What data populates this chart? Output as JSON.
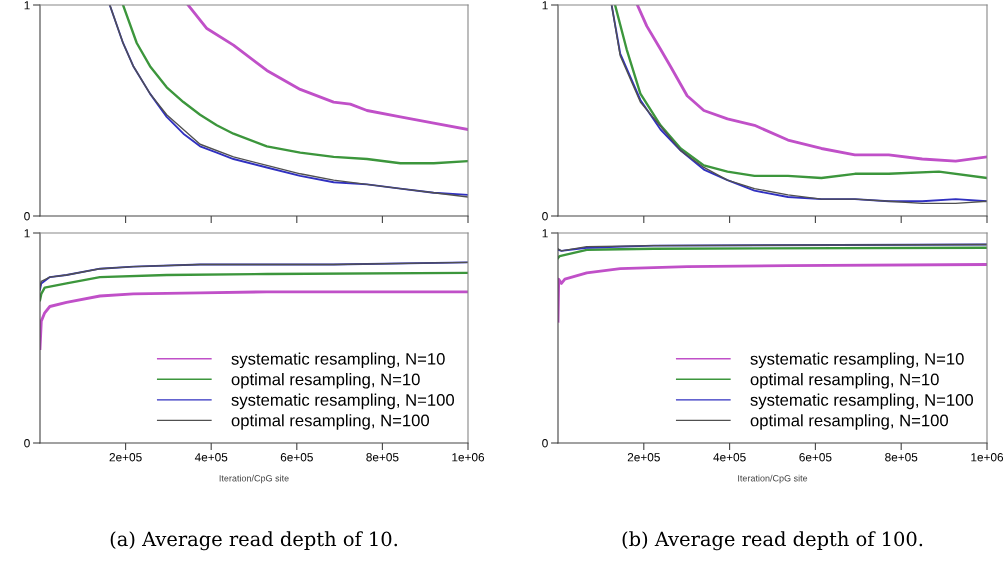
{
  "chart_data": [
    {
      "type": "line",
      "xlim": [
        0,
        1000000
      ],
      "ylim": [
        0,
        1
      ],
      "yticks": [
        0,
        1
      ],
      "xticks": [
        {
          "value": 200000,
          "label": null
        },
        {
          "value": 400000,
          "label": null
        },
        {
          "value": 600000,
          "label": null
        },
        {
          "value": 800000,
          "label": null
        },
        {
          "value": 1000000,
          "label": null
        }
      ],
      "tick_labels": "y",
      "grid": false,
      "legend": false,
      "series": [
        {
          "color": "#c050c8",
          "x": [
            346000,
            389000,
            452000,
            530000,
            608000,
            686000,
            725000,
            764000,
            842000,
            920000,
            1000000
          ],
          "values": [
            1,
            0.89,
            0.81,
            0.69,
            0.6,
            0.54,
            0.53,
            0.5,
            0.47,
            0.44,
            0.41
          ]
        },
        {
          "color": "#3c963c",
          "x": [
            194000,
            226000,
            257000,
            296000,
            335000,
            374000,
            413000,
            452000,
            530000,
            608000,
            686000,
            764000,
            842000,
            920000,
            1000000
          ],
          "values": [
            1,
            0.82,
            0.71,
            0.61,
            0.54,
            0.48,
            0.43,
            0.39,
            0.33,
            0.3,
            0.28,
            0.27,
            0.25,
            0.25,
            0.26
          ]
        },
        {
          "color": "#3030c0",
          "x": [
            163000,
            194000,
            218000,
            257000,
            296000,
            335000,
            374000,
            413000,
            452000,
            530000,
            608000,
            686000,
            764000,
            842000,
            920000,
            1000000
          ],
          "values": [
            1,
            0.82,
            0.71,
            0.58,
            0.47,
            0.39,
            0.33,
            0.3,
            0.27,
            0.23,
            0.19,
            0.16,
            0.15,
            0.13,
            0.11,
            0.1
          ]
        },
        {
          "color": "#505050",
          "x": [
            163000,
            194000,
            218000,
            257000,
            296000,
            374000,
            452000,
            530000,
            608000,
            686000,
            764000,
            842000,
            920000,
            1000000
          ],
          "values": [
            1,
            0.82,
            0.71,
            0.58,
            0.48,
            0.34,
            0.28,
            0.24,
            0.2,
            0.17,
            0.15,
            0.13,
            0.11,
            0.09
          ]
        }
      ]
    },
    {
      "type": "line",
      "xlim": [
        0,
        1000000
      ],
      "ylim": [
        0,
        1
      ],
      "yticks": [
        0,
        1
      ],
      "xticks": [
        {
          "value": 200000,
          "label": "2e+05"
        },
        {
          "value": 400000,
          "label": "4e+05"
        },
        {
          "value": 600000,
          "label": "6e+05"
        },
        {
          "value": 800000,
          "label": "8e+05"
        },
        {
          "value": 1000000,
          "label": "1e+06"
        }
      ],
      "xlabel": "Iteration/CpG site",
      "annotations": [
        "(a) Average read depth of 10."
      ],
      "grid": false,
      "legend": "bottom right",
      "series": [
        {
          "name": "systematic resampling, N=10",
          "color": "#c050c8",
          "x": [
            0,
            3000,
            11000,
            23000,
            62000,
            140000,
            218000,
            374000,
            530000,
            1000000
          ],
          "values": [
            0.45,
            0.58,
            0.62,
            0.65,
            0.67,
            0.7,
            0.71,
            0.715,
            0.72,
            0.72
          ]
        },
        {
          "name": "optimal resampling, N=10",
          "color": "#3c963c",
          "x": [
            0,
            3000,
            11000,
            62000,
            140000,
            296000,
            530000,
            1000000
          ],
          "values": [
            0.68,
            0.71,
            0.74,
            0.76,
            0.79,
            0.8,
            0.805,
            0.81
          ]
        },
        {
          "name": "systematic resampling, N=100",
          "color": "#3030c0",
          "x": [
            0,
            3000,
            23000,
            62000,
            140000,
            218000,
            374000,
            686000,
            1000000
          ],
          "values": [
            0.73,
            0.76,
            0.79,
            0.8,
            0.83,
            0.84,
            0.85,
            0.85,
            0.86
          ]
        },
        {
          "name": "optimal resampling, N=100",
          "color": "#505050",
          "x": [
            0,
            3000,
            23000,
            62000,
            140000,
            218000,
            374000,
            686000,
            1000000
          ],
          "values": [
            0.74,
            0.77,
            0.79,
            0.8,
            0.83,
            0.84,
            0.85,
            0.85,
            0.86
          ]
        }
      ]
    },
    {
      "type": "line",
      "xlim": [
        0,
        1000000
      ],
      "ylim": [
        0,
        1
      ],
      "yticks": [
        0,
        1
      ],
      "xticks": [
        {
          "value": 200000,
          "label": null
        },
        {
          "value": 400000,
          "label": null
        },
        {
          "value": 600000,
          "label": null
        },
        {
          "value": 800000,
          "label": null
        },
        {
          "value": 1000000,
          "label": null
        }
      ],
      "tick_labels": "y",
      "grid": false,
      "legend": false,
      "series": [
        {
          "color": "#c050c8",
          "x": [
            185000,
            207000,
            239000,
            262000,
            301000,
            340000,
            395000,
            458000,
            536000,
            614000,
            692000,
            771000,
            849000,
            927000,
            1000000
          ],
          "values": [
            1,
            0.9,
            0.79,
            0.71,
            0.57,
            0.5,
            0.46,
            0.43,
            0.36,
            0.32,
            0.29,
            0.29,
            0.27,
            0.26,
            0.28
          ]
        },
        {
          "color": "#3c963c",
          "x": [
            133000,
            160000,
            192000,
            239000,
            286000,
            340000,
            395000,
            458000,
            536000,
            614000,
            692000,
            771000,
            888000,
            1000000
          ],
          "values": [
            1,
            0.79,
            0.58,
            0.43,
            0.32,
            0.24,
            0.21,
            0.19,
            0.19,
            0.18,
            0.2,
            0.2,
            0.21,
            0.18
          ]
        },
        {
          "color": "#3030c0",
          "x": [
            125000,
            145000,
            192000,
            239000,
            286000,
            340000,
            395000,
            458000,
            536000,
            614000,
            692000,
            771000,
            849000,
            927000,
            1000000
          ],
          "values": [
            1,
            0.77,
            0.55,
            0.41,
            0.31,
            0.22,
            0.17,
            0.12,
            0.09,
            0.08,
            0.08,
            0.07,
            0.07,
            0.08,
            0.07
          ]
        },
        {
          "color": "#505050",
          "x": [
            125000,
            145000,
            192000,
            286000,
            340000,
            395000,
            458000,
            536000,
            614000,
            692000,
            771000,
            849000,
            927000,
            1000000
          ],
          "values": [
            1,
            0.76,
            0.54,
            0.31,
            0.23,
            0.17,
            0.13,
            0.1,
            0.08,
            0.08,
            0.07,
            0.06,
            0.06,
            0.07
          ]
        }
      ]
    },
    {
      "type": "line",
      "xlim": [
        0,
        1000000
      ],
      "ylim": [
        0,
        1
      ],
      "yticks": [
        0,
        1
      ],
      "xticks": [
        {
          "value": 200000,
          "label": "2e+05"
        },
        {
          "value": 400000,
          "label": "4e+05"
        },
        {
          "value": 600000,
          "label": "6e+05"
        },
        {
          "value": 800000,
          "label": "8e+05"
        },
        {
          "value": 1000000,
          "label": "1e+06"
        }
      ],
      "xlabel": "Iteration/CpG site",
      "annotations": [
        "(b) Average read depth of 100."
      ],
      "grid": false,
      "legend": "bottom right",
      "series": [
        {
          "name": "systematic resampling, N=10",
          "color": "#c050c8",
          "x": [
            0,
            1600,
            8000,
            16000,
            67000,
            145000,
            301000,
            536000,
            1000000
          ],
          "values": [
            0.58,
            0.78,
            0.76,
            0.78,
            0.81,
            0.83,
            0.84,
            0.845,
            0.85
          ]
        },
        {
          "name": "optimal resampling, N=10",
          "color": "#3c963c",
          "x": [
            0,
            4000,
            67000,
            223000,
            1000000
          ],
          "values": [
            0.88,
            0.89,
            0.92,
            0.925,
            0.93
          ]
        },
        {
          "name": "systematic resampling, N=100",
          "color": "#3030c0",
          "x": [
            0,
            8000,
            67000,
            223000,
            1000000
          ],
          "values": [
            0.92,
            0.915,
            0.93,
            0.94,
            0.945
          ]
        },
        {
          "name": "optimal resampling, N=100",
          "color": "#505050",
          "x": [
            0,
            8000,
            67000,
            223000,
            1000000
          ],
          "values": [
            0.925,
            0.915,
            0.935,
            0.94,
            0.945
          ]
        }
      ]
    }
  ]
}
